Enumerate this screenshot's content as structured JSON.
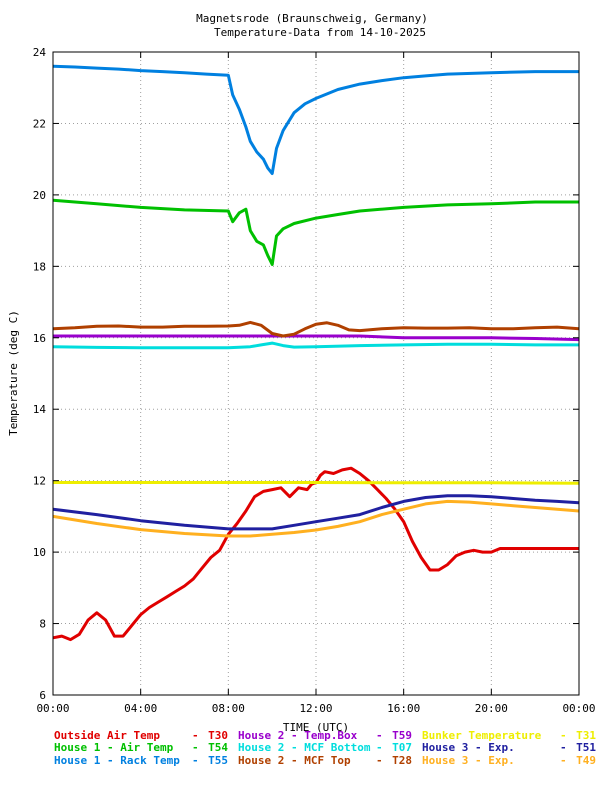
{
  "chart_data": {
    "type": "line",
    "title": "Magnetsrode (Braunschweig, Germany)",
    "subtitle": "Temperature-Data from 14-10-2025",
    "xlabel": "TIME (UTC)",
    "ylabel": "Temperature (deg C)",
    "xlim": [
      0,
      24
    ],
    "ylim": [
      6,
      24
    ],
    "xticks": [
      {
        "value": 0,
        "label": "00:00"
      },
      {
        "value": 4,
        "label": "04:00"
      },
      {
        "value": 8,
        "label": "08:00"
      },
      {
        "value": 12,
        "label": "12:00"
      },
      {
        "value": 16,
        "label": "16:00"
      },
      {
        "value": 20,
        "label": "20:00"
      },
      {
        "value": 24,
        "label": "00:00"
      }
    ],
    "yticks": [
      {
        "value": 6,
        "label": "6"
      },
      {
        "value": 8,
        "label": "8"
      },
      {
        "value": 10,
        "label": "10"
      },
      {
        "value": 12,
        "label": "12"
      },
      {
        "value": 14,
        "label": "14"
      },
      {
        "value": 16,
        "label": "16"
      },
      {
        "value": 18,
        "label": "18"
      },
      {
        "value": 20,
        "label": "20"
      },
      {
        "value": 22,
        "label": "22"
      },
      {
        "value": 24,
        "label": "24"
      }
    ],
    "grid": true,
    "legend_position": "bottom",
    "series": [
      {
        "name": "Outside Air Temp",
        "code": "T30",
        "color": "#e00000",
        "x": [
          0,
          0.4,
          0.8,
          1.2,
          1.6,
          2,
          2.4,
          2.8,
          3.2,
          3.6,
          4,
          4.4,
          4.8,
          5.2,
          5.6,
          6,
          6.4,
          6.8,
          7.2,
          7.6,
          8,
          8.4,
          8.8,
          9.2,
          9.6,
          10,
          10.4,
          10.8,
          11.2,
          11.6,
          11.8,
          12,
          12.2,
          12.4,
          12.8,
          13.2,
          13.6,
          14,
          14.4,
          14.8,
          15.2,
          15.6,
          16,
          16.4,
          16.8,
          17.2,
          17.6,
          18,
          18.4,
          18.8,
          19.2,
          19.6,
          20,
          20.4,
          20.8,
          21.2,
          21.6,
          22,
          22.4,
          22.8,
          23.2,
          23.6,
          24
        ],
        "y": [
          7.6,
          7.65,
          7.55,
          7.7,
          8.1,
          8.3,
          8.1,
          7.65,
          7.65,
          7.95,
          8.25,
          8.45,
          8.6,
          8.75,
          8.9,
          9.05,
          9.25,
          9.55,
          9.85,
          10.05,
          10.5,
          10.8,
          11.15,
          11.55,
          11.7,
          11.75,
          11.8,
          11.55,
          11.8,
          11.75,
          11.9,
          11.95,
          12.15,
          12.25,
          12.2,
          12.3,
          12.35,
          12.2,
          12.0,
          11.75,
          11.5,
          11.2,
          10.85,
          10.3,
          9.85,
          9.5,
          9.5,
          9.65,
          9.9,
          10.0,
          10.05,
          10.0,
          10.0,
          10.1,
          10.1,
          10.1,
          10.1,
          10.1,
          10.1,
          10.1,
          10.1,
          10.1,
          10.1
        ]
      },
      {
        "name": "House 1 - Air  Temp",
        "code": "T54",
        "color": "#00c000",
        "x": [
          0,
          2,
          4,
          6,
          8,
          8.2,
          8.5,
          8.8,
          9.0,
          9.3,
          9.6,
          9.8,
          10.0,
          10.2,
          10.5,
          11,
          12,
          13,
          14,
          16,
          18,
          20,
          22,
          24
        ],
        "y": [
          19.85,
          19.75,
          19.65,
          19.58,
          19.55,
          19.25,
          19.5,
          19.6,
          19.0,
          18.7,
          18.6,
          18.3,
          18.05,
          18.85,
          19.05,
          19.2,
          19.35,
          19.45,
          19.55,
          19.65,
          19.72,
          19.75,
          19.8,
          19.8
        ]
      },
      {
        "name": "House 1 - Rack Temp",
        "code": "T55",
        "color": "#0080e0",
        "x": [
          0,
          1,
          2,
          3,
          4,
          5,
          6,
          7,
          8,
          8.2,
          8.5,
          8.8,
          9,
          9.3,
          9.6,
          9.8,
          10,
          10.2,
          10.5,
          11,
          11.5,
          12,
          13,
          14,
          15,
          16,
          17,
          18,
          20,
          22,
          24
        ],
        "y": [
          23.6,
          23.58,
          23.55,
          23.52,
          23.48,
          23.45,
          23.42,
          23.38,
          23.35,
          22.8,
          22.4,
          21.9,
          21.5,
          21.2,
          21.0,
          20.75,
          20.6,
          21.3,
          21.8,
          22.3,
          22.55,
          22.7,
          22.95,
          23.1,
          23.2,
          23.28,
          23.33,
          23.38,
          23.42,
          23.45,
          23.45
        ]
      },
      {
        "name": "House 2 - Temp.Box",
        "code": "T59",
        "color": "#9900cc",
        "x": [
          0,
          2,
          4,
          6,
          8,
          9.5,
          10,
          10.5,
          12,
          14,
          16,
          18,
          20,
          22,
          24
        ],
        "y": [
          16.05,
          16.05,
          16.05,
          16.05,
          16.05,
          16.05,
          16.05,
          16.05,
          16.05,
          16.05,
          16.0,
          16.0,
          16.0,
          15.98,
          15.95
        ]
      },
      {
        "name": "House 2 - MCF Bottom",
        "code": "T07",
        "color": "#00dddd",
        "x": [
          0,
          2,
          4,
          6,
          8,
          9,
          9.5,
          10,
          10.5,
          11,
          12,
          14,
          16,
          18,
          20,
          22,
          24
        ],
        "y": [
          15.75,
          15.73,
          15.72,
          15.72,
          15.72,
          15.75,
          15.8,
          15.85,
          15.78,
          15.74,
          15.75,
          15.78,
          15.8,
          15.82,
          15.82,
          15.8,
          15.8
        ]
      },
      {
        "name": "House 2 - MCF Top",
        "code": "T28",
        "color": "#b04000",
        "x": [
          0,
          1,
          2,
          3,
          4,
          5,
          6,
          7,
          8,
          8.5,
          9,
          9.5,
          10,
          10.5,
          11,
          11.5,
          12,
          12.5,
          13,
          13.5,
          14,
          15,
          16,
          17,
          18,
          19,
          20,
          21,
          22,
          23,
          24
        ],
        "y": [
          16.25,
          16.28,
          16.32,
          16.33,
          16.3,
          16.3,
          16.32,
          16.32,
          16.33,
          16.35,
          16.43,
          16.35,
          16.12,
          16.05,
          16.1,
          16.25,
          16.38,
          16.42,
          16.35,
          16.22,
          16.2,
          16.25,
          16.28,
          16.27,
          16.27,
          16.28,
          16.25,
          16.25,
          16.28,
          16.3,
          16.25
        ]
      },
      {
        "name": "Bunker Temperature",
        "code": "T31",
        "color": "#eeee00",
        "x": [
          0,
          4,
          8,
          12,
          16,
          20,
          24
        ],
        "y": [
          11.95,
          11.95,
          11.95,
          11.95,
          11.94,
          11.94,
          11.93
        ]
      },
      {
        "name": "House 3 - Exp.",
        "code": "T51",
        "color": "#2020a0",
        "x": [
          0,
          2,
          4,
          6,
          8,
          9,
          10,
          11,
          12,
          13,
          14,
          15,
          16,
          17,
          18,
          19,
          20,
          21,
          22,
          23,
          24
        ],
        "y": [
          11.2,
          11.05,
          10.88,
          10.75,
          10.65,
          10.65,
          10.65,
          10.75,
          10.85,
          10.95,
          11.05,
          11.25,
          11.42,
          11.53,
          11.58,
          11.58,
          11.55,
          11.5,
          11.45,
          11.42,
          11.38
        ]
      },
      {
        "name": "House 3 - Exp.",
        "code": "T49",
        "color": "#ffb020",
        "x": [
          0,
          2,
          4,
          6,
          8,
          9,
          10,
          11,
          12,
          13,
          14,
          15,
          16,
          17,
          18,
          19,
          20,
          21,
          22,
          23,
          24
        ],
        "y": [
          11.0,
          10.8,
          10.63,
          10.52,
          10.45,
          10.45,
          10.5,
          10.55,
          10.62,
          10.72,
          10.85,
          11.05,
          11.2,
          11.35,
          11.42,
          11.4,
          11.35,
          11.3,
          11.25,
          11.2,
          11.15
        ]
      }
    ]
  }
}
